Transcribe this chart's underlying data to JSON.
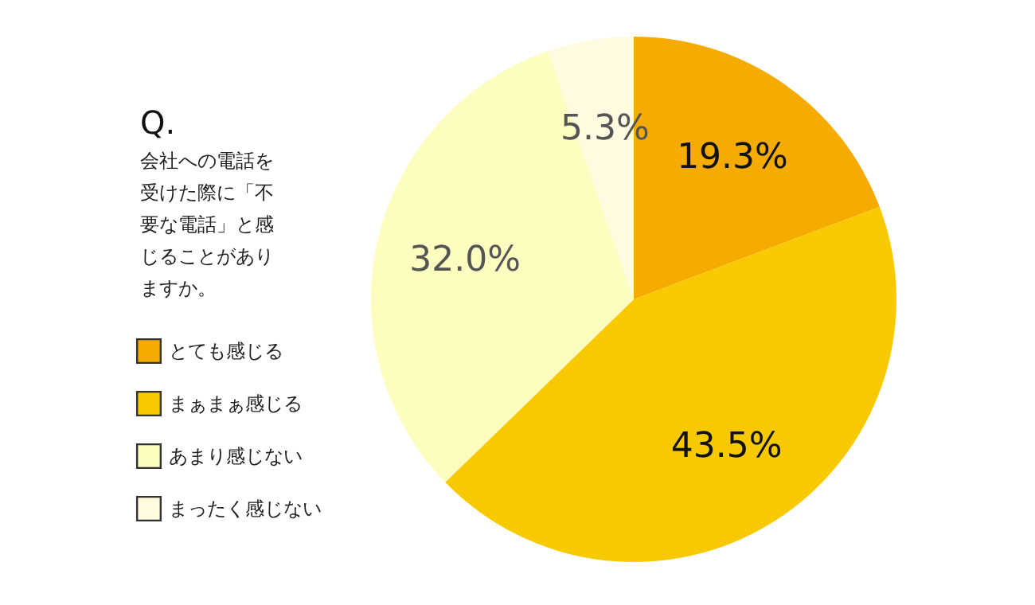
{
  "chart_data": {
    "type": "pie",
    "title": "Q.",
    "subtitle": "会社への電話を受けた際に「不要な電話」と感じることがありますか。",
    "categories": [
      "とても感じる",
      "まぁまぁ感じる",
      "あまり感じない",
      "まったく感じない"
    ],
    "values": [
      19.3,
      43.5,
      32.0,
      5.3
    ],
    "colors": [
      "#f5ab00",
      "#f9c900",
      "#fefdc0",
      "#fefbe1"
    ],
    "value_labels": [
      "19.3%",
      "43.5%",
      "32.0%",
      "5.3%"
    ],
    "legend": "left"
  }
}
